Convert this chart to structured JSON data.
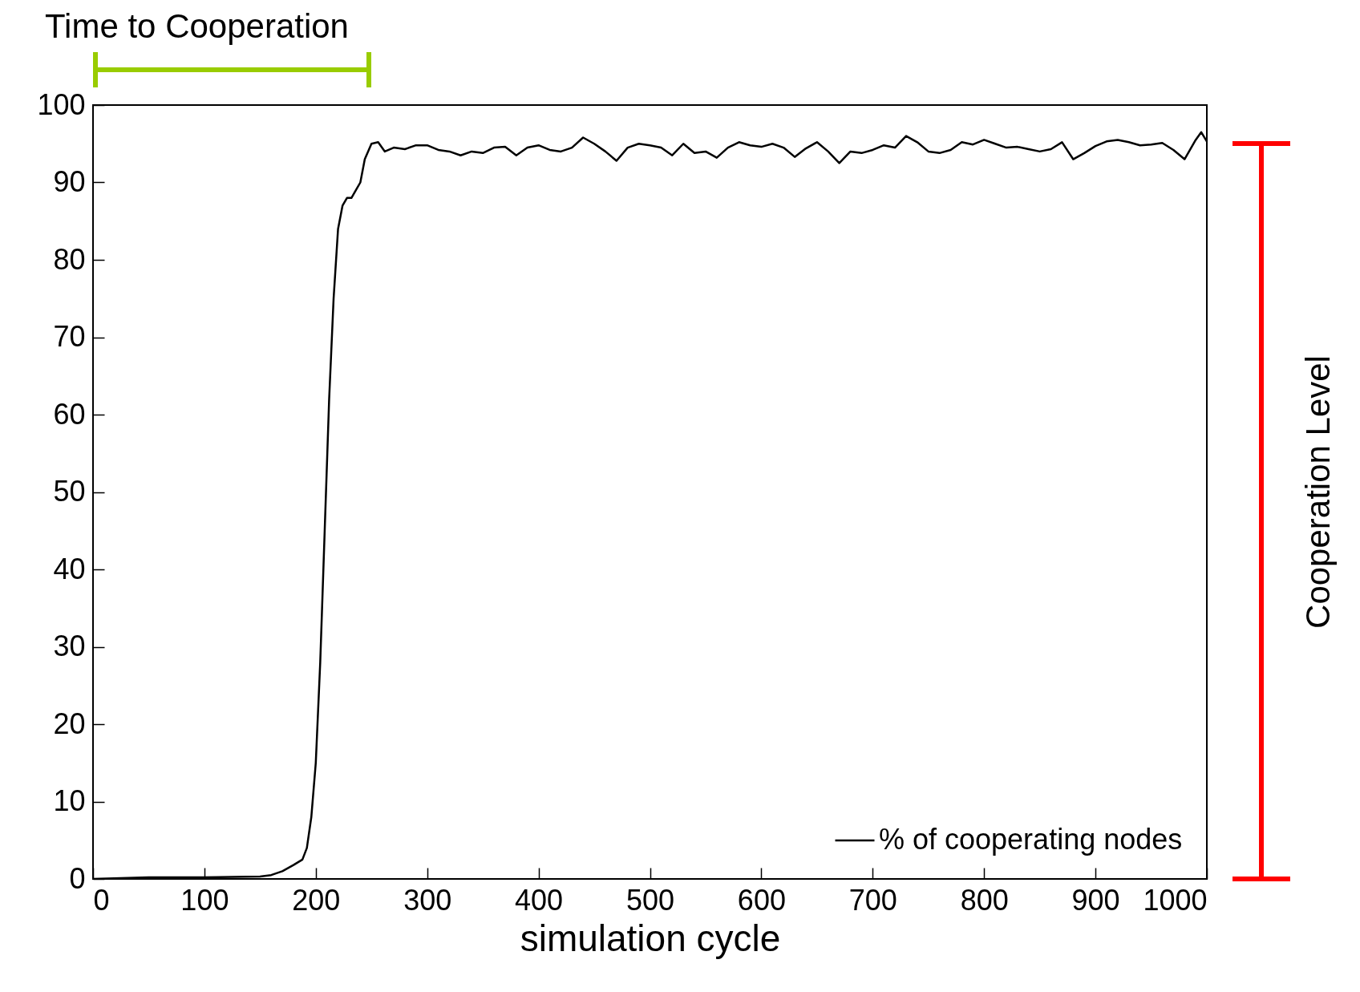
{
  "chart_data": {
    "type": "line",
    "xlabel": "simulation cycle",
    "xlim": [
      0,
      1000
    ],
    "xticks": [
      0,
      100,
      200,
      300,
      400,
      500,
      600,
      700,
      800,
      900,
      {
        "value": 1000,
        "label": "1000"
      }
    ],
    "ylim": [
      0,
      100
    ],
    "yticks": [
      0,
      10,
      20,
      30,
      40,
      50,
      60,
      70,
      80,
      90,
      100
    ],
    "grid": false,
    "legend": "bottom right",
    "marker": "none",
    "line_style": "solid",
    "x": [
      0,
      50,
      100,
      150,
      160,
      170,
      180,
      188,
      192,
      196,
      200,
      204,
      208,
      212,
      216,
      220,
      224,
      228,
      232,
      236,
      240,
      244,
      250,
      256,
      262,
      270,
      280,
      290,
      300,
      310,
      320,
      330,
      340,
      350,
      360,
      370,
      380,
      390,
      400,
      410,
      420,
      430,
      440,
      450,
      460,
      470,
      480,
      490,
      500,
      510,
      520,
      530,
      540,
      550,
      560,
      570,
      580,
      590,
      600,
      610,
      620,
      630,
      640,
      650,
      660,
      670,
      680,
      690,
      700,
      710,
      720,
      730,
      740,
      750,
      760,
      770,
      780,
      790,
      800,
      810,
      820,
      830,
      840,
      850,
      860,
      870,
      880,
      890,
      900,
      910,
      920,
      930,
      940,
      950,
      960,
      970,
      980,
      990,
      995,
      1000
    ],
    "series": [
      {
        "name": "% of cooperating nodes",
        "color": "#000000",
        "values": [
          0,
          0.2,
          0.2,
          0.3,
          0.5,
          1,
          1.8,
          2.5,
          4,
          8,
          15,
          28,
          45,
          62,
          75,
          84,
          87,
          88,
          88,
          89,
          90,
          93,
          95,
          95.2,
          94,
          94.5,
          94.3,
          94.8,
          94.8,
          94.2,
          94,
          93.5,
          94,
          93.8,
          94.5,
          94.6,
          93.5,
          94.5,
          94.8,
          94.2,
          94,
          94.5,
          95.8,
          95,
          94,
          92.8,
          94.5,
          95,
          94.8,
          94.5,
          93.5,
          95,
          93.8,
          94,
          93.2,
          94.5,
          95.2,
          94.8,
          94.6,
          95,
          94.5,
          93.3,
          94.4,
          95.2,
          94,
          92.5,
          94,
          93.8,
          94.2,
          94.8,
          94.5,
          96,
          95.2,
          94,
          93.8,
          94.2,
          95.2,
          94.9,
          95.5,
          95,
          94.5,
          94.6,
          94.3,
          94,
          94.3,
          95.2,
          93,
          93.8,
          94.7,
          95.3,
          95.5,
          95.2,
          94.8,
          94.9,
          95.1,
          94.2,
          93,
          95.5,
          96.5,
          95.3
        ]
      }
    ],
    "annotations": [
      "Time to Cooperation",
      "Cooperation Level"
    ]
  }
}
